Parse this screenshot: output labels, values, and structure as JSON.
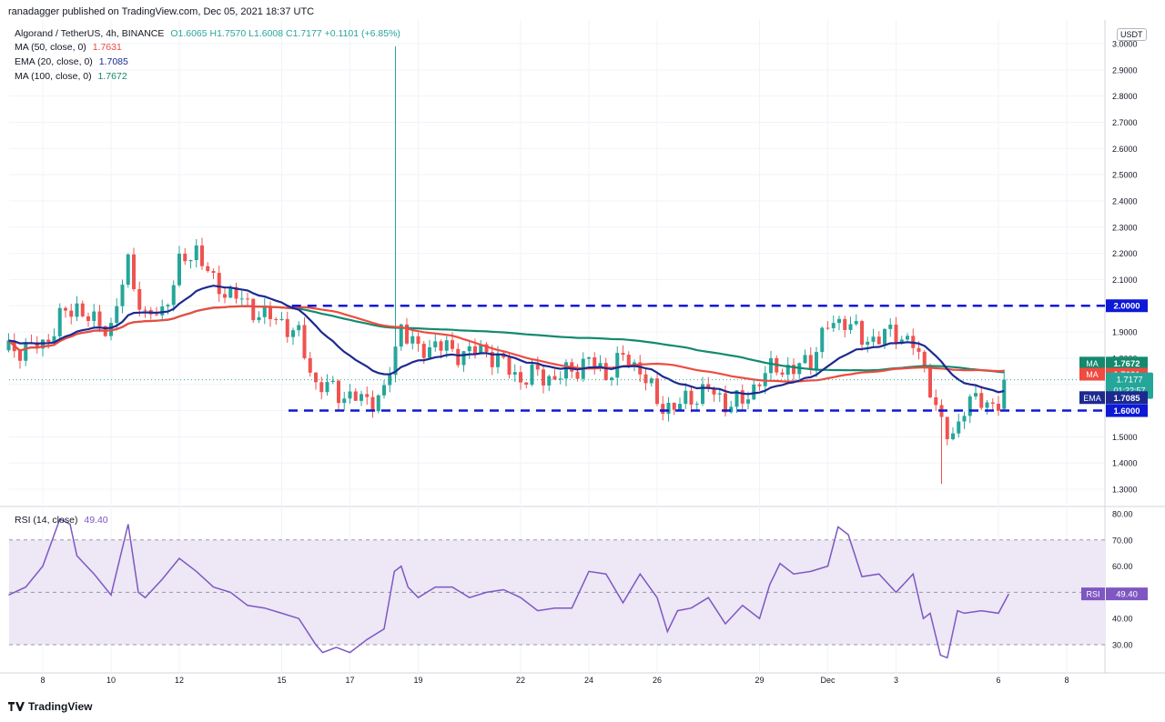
{
  "header": {
    "published": "ranadagger published on TradingView.com, Dec 05, 2021 18:37 UTC"
  },
  "legend": {
    "symbol": "Algorand / TetherUS, 4h, BINANCE",
    "ohlc": "O1.6065  H1.7570  L1.6008  C1.7177  +0.1101 (+6.85%)",
    "ma50_label": "MA (50, close, 0)",
    "ma50_value": "1.7631",
    "ema20_label": "EMA (20, close, 0)",
    "ema20_value": "1.7085",
    "ma100_label": "MA (100, close, 0)",
    "ma100_value": "1.7672"
  },
  "rsi": {
    "label": "RSI (14, close)",
    "value": "49.40",
    "tag": "RSI"
  },
  "brand": "TradingView",
  "unit": "USDT",
  "colors": {
    "up": "#26a69a",
    "down": "#ef5350",
    "ema20": "#1c2a8f",
    "ma50": "#ef4b40",
    "ma100": "#138a6e",
    "level": "#0d19d6",
    "rsi": "#7e57c2",
    "rsi_band": "#ede7f6"
  },
  "chart_data": [
    {
      "type": "candlestick",
      "title": "Algorand / TetherUS, 4h, BINANCE",
      "y_axis_ticks": [
        "3.0000",
        "2.9000",
        "2.8000",
        "2.7000",
        "2.6000",
        "2.5000",
        "2.4000",
        "2.3000",
        "2.2000",
        "2.1000",
        "2.0000",
        "1.9000",
        "1.8000",
        "1.7000",
        "1.6000",
        "1.5000",
        "1.4000",
        "1.3000"
      ],
      "ylim": [
        1.27,
        3.02
      ],
      "x_axis_ticks": [
        "8",
        "10",
        "12",
        "15",
        "17",
        "19",
        "22",
        "24",
        "26",
        "29",
        "Dec",
        "3",
        "6",
        "8"
      ],
      "grid": true,
      "levels": [
        {
          "label": "2.0000",
          "value": 2.0
        },
        {
          "label": "1.6000",
          "value": 1.6
        }
      ],
      "price_tags": [
        {
          "tag": "MA",
          "value": "1.7672",
          "series": "MA 100"
        },
        {
          "tag": "MA",
          "value": "1.7631",
          "series": "MA 50"
        },
        {
          "tag": "",
          "value": "1.7177",
          "extra": "01:22:57",
          "series": "last price"
        },
        {
          "tag": "EMA",
          "value": "1.7085",
          "series": "EMA 20"
        }
      ],
      "last_price": 1.7177,
      "spike_high": 2.99,
      "spike_low": 1.32,
      "close_path": [
        [
          7,
          1.83
        ],
        [
          8,
          1.85
        ],
        [
          8.5,
          1.95
        ],
        [
          9,
          2.0
        ],
        [
          9.5,
          1.93
        ],
        [
          10,
          1.92
        ],
        [
          10.5,
          2.16
        ],
        [
          11,
          1.95
        ],
        [
          11.5,
          1.98
        ],
        [
          12,
          2.15
        ],
        [
          12.5,
          2.22
        ],
        [
          13,
          2.08
        ],
        [
          13.5,
          2.05
        ],
        [
          14,
          2.0
        ],
        [
          14.5,
          1.96
        ],
        [
          15,
          1.94
        ],
        [
          15.5,
          1.88
        ],
        [
          16,
          1.7
        ],
        [
          16.5,
          1.68
        ],
        [
          17,
          1.65
        ],
        [
          17.5,
          1.64
        ],
        [
          18,
          1.66
        ],
        [
          18.5,
          1.93
        ],
        [
          19,
          1.82
        ],
        [
          19.5,
          1.86
        ],
        [
          20,
          1.82
        ],
        [
          21,
          1.83
        ],
        [
          22,
          1.72
        ],
        [
          22.5,
          1.74
        ],
        [
          23,
          1.72
        ],
        [
          24,
          1.79
        ],
        [
          24.5,
          1.74
        ],
        [
          25,
          1.8
        ],
        [
          25.5,
          1.76
        ],
        [
          26,
          1.63
        ],
        [
          26.5,
          1.61
        ],
        [
          27,
          1.65
        ],
        [
          27.5,
          1.68
        ],
        [
          28,
          1.63
        ],
        [
          28.5,
          1.63
        ],
        [
          29,
          1.72
        ],
        [
          29.5,
          1.77
        ],
        [
          30,
          1.75
        ],
        [
          30.5,
          1.8
        ],
        [
          31,
          1.92
        ],
        [
          31.5,
          1.95
        ],
        [
          32,
          1.87
        ],
        [
          32.5,
          1.88
        ],
        [
          33,
          1.9
        ],
        [
          33.5,
          1.85
        ],
        [
          34,
          1.7
        ],
        [
          34.3,
          1.55
        ],
        [
          34.6,
          1.48
        ],
        [
          35,
          1.62
        ],
        [
          35.5,
          1.64
        ],
        [
          36,
          1.62
        ],
        [
          36.3,
          1.72
        ]
      ]
    },
    {
      "type": "line",
      "title": "RSI (14, close)",
      "y_axis_ticks": [
        "80.00",
        "70.00",
        "60.00",
        "50.00",
        "40.00",
        "30.00"
      ],
      "ylim": [
        25,
        80
      ],
      "band": [
        30,
        70
      ],
      "midline": 50,
      "series": [
        {
          "name": "RSI",
          "last": 49.4,
          "x": [
            7,
            7.5,
            8,
            8.5,
            8.8,
            9,
            9.5,
            10,
            10.5,
            10.8,
            11,
            11.5,
            12,
            12.5,
            13,
            13.5,
            14,
            14.5,
            15,
            15.5,
            16,
            16.2,
            16.6,
            17,
            17.5,
            18,
            18.3,
            18.5,
            18.7,
            19,
            19.5,
            20,
            20.5,
            21,
            21.5,
            22,
            22.5,
            23,
            23.5,
            24,
            24.5,
            25,
            25.5,
            26,
            26.3,
            26.6,
            27,
            27.5,
            28,
            28.5,
            29,
            29.3,
            29.6,
            30,
            30.5,
            31,
            31.3,
            31.6,
            32,
            32.5,
            33,
            33.5,
            33.8,
            34,
            34.3,
            34.5,
            34.8,
            35,
            35.5,
            36,
            36.3
          ],
          "values": [
            49,
            52,
            60,
            78,
            76,
            64,
            57,
            49,
            76,
            50,
            48,
            55,
            63,
            58,
            52,
            50,
            45,
            44,
            42,
            40,
            30,
            27,
            29,
            27,
            32,
            36,
            58,
            60,
            52,
            48,
            52,
            52,
            48,
            50,
            51,
            48,
            43,
            44,
            44,
            58,
            57,
            46,
            57,
            48,
            35,
            43,
            44,
            48,
            38,
            45,
            40,
            53,
            61,
            57,
            58,
            60,
            75,
            72,
            56,
            57,
            50,
            57,
            40,
            42,
            26,
            25,
            43,
            42,
            43,
            42,
            49.4
          ]
        }
      ]
    }
  ]
}
